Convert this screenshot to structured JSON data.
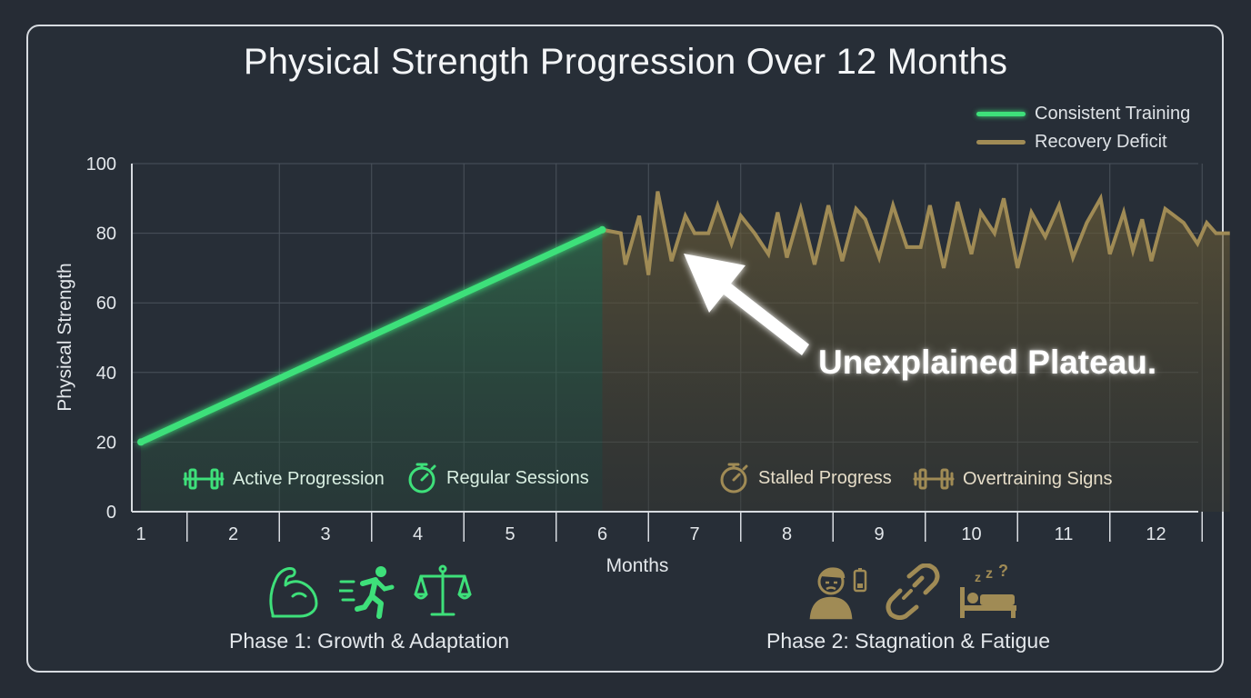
{
  "chart_data": {
    "type": "line",
    "title": "Physical Strength Progression Over 12 Months",
    "xlabel": "Months",
    "ylabel": "Physical Strength",
    "x_ticks": [
      "1",
      "2",
      "3",
      "4",
      "5",
      "6",
      "7",
      "8",
      "9",
      "10",
      "11",
      "12"
    ],
    "y_ticks": [
      "0",
      "20",
      "40",
      "60",
      "80",
      "100"
    ],
    "xlim": [
      1,
      12.6
    ],
    "ylim": [
      0,
      100
    ],
    "grid": true,
    "legend_position": "top-right",
    "series": [
      {
        "name": "Consistent Training",
        "color": "#3ee07a",
        "points": [
          [
            1,
            20
          ],
          [
            6,
            81
          ]
        ]
      },
      {
        "name": "Recovery Deficit",
        "color": "#a08b55",
        "points": [
          [
            6,
            81
          ],
          [
            6.2,
            80
          ],
          [
            6.25,
            71
          ],
          [
            6.4,
            85
          ],
          [
            6.5,
            68
          ],
          [
            6.6,
            92
          ],
          [
            6.75,
            72
          ],
          [
            6.9,
            85
          ],
          [
            7.0,
            80
          ],
          [
            7.15,
            80
          ],
          [
            7.25,
            88
          ],
          [
            7.4,
            77
          ],
          [
            7.5,
            85
          ],
          [
            7.65,
            80
          ],
          [
            7.8,
            74
          ],
          [
            7.9,
            86
          ],
          [
            8.0,
            73
          ],
          [
            8.15,
            87
          ],
          [
            8.3,
            71
          ],
          [
            8.45,
            88
          ],
          [
            8.6,
            72
          ],
          [
            8.75,
            87
          ],
          [
            8.85,
            84
          ],
          [
            9.0,
            73
          ],
          [
            9.15,
            88
          ],
          [
            9.3,
            76
          ],
          [
            9.45,
            76
          ],
          [
            9.55,
            88
          ],
          [
            9.7,
            70
          ],
          [
            9.85,
            89
          ],
          [
            10.0,
            74
          ],
          [
            10.1,
            86
          ],
          [
            10.25,
            80
          ],
          [
            10.35,
            90
          ],
          [
            10.5,
            70
          ],
          [
            10.65,
            86
          ],
          [
            10.8,
            79
          ],
          [
            10.95,
            88
          ],
          [
            11.1,
            73
          ],
          [
            11.25,
            83
          ],
          [
            11.4,
            90
          ],
          [
            11.5,
            74
          ],
          [
            11.65,
            86
          ],
          [
            11.75,
            75
          ],
          [
            11.85,
            84
          ],
          [
            11.95,
            72
          ],
          [
            12.1,
            87
          ],
          [
            12.3,
            83
          ],
          [
            12.45,
            77
          ],
          [
            12.55,
            83
          ],
          [
            12.65,
            80
          ],
          [
            12.7,
            80
          ],
          [
            12.8,
            80
          ]
        ]
      }
    ],
    "annotations": {
      "callout": "Unexplained Plateau.",
      "phase1_markers": [
        "Active Progression",
        "Regular Sessions"
      ],
      "phase2_markers": [
        "Stalled Progress",
        "Overtraining Signs"
      ],
      "phase1_label": "Phase 1: Growth & Adaptation",
      "phase2_label": "Phase 2: Stagnation & Fatigue"
    }
  },
  "icons": {
    "phase1": [
      "flexed-bicep-icon",
      "running-person-icon",
      "balance-scale-icon"
    ],
    "phase2": [
      "tired-person-low-battery-icon",
      "broken-chain-icon",
      "sleeping-bed-icon"
    ],
    "markers": [
      "dumbbell-icon",
      "stopwatch-icon"
    ]
  },
  "colors": {
    "green": "#3ee07a",
    "gold": "#a08b55",
    "background": "#262c35"
  }
}
